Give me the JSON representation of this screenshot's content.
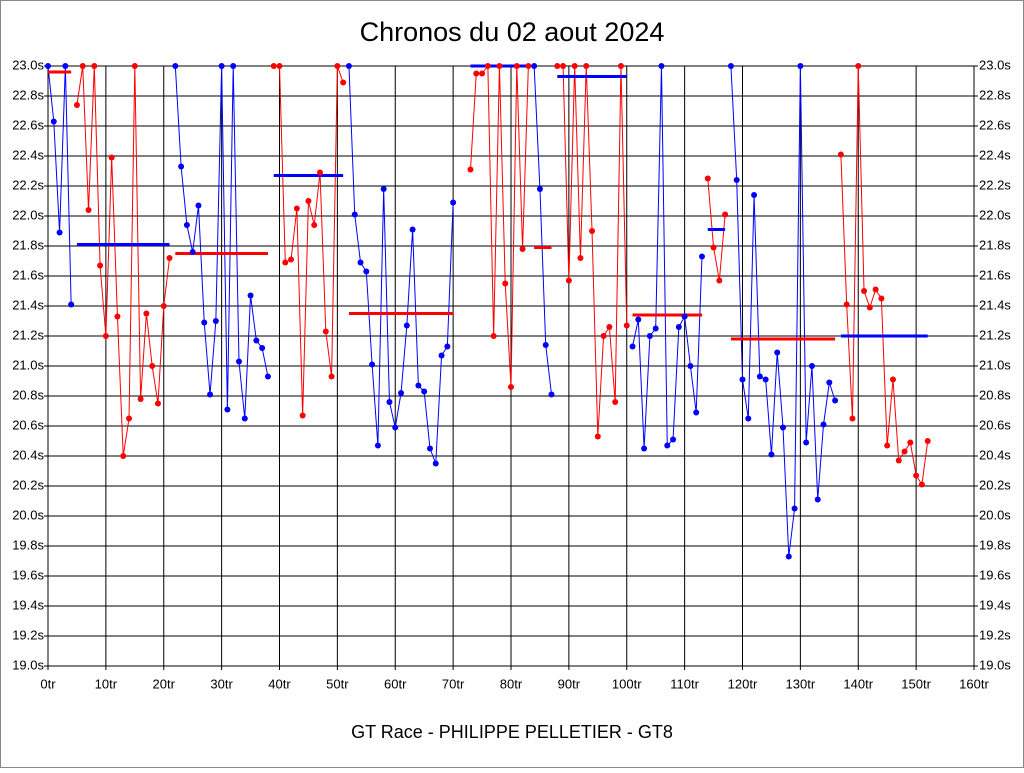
{
  "chart_data": {
    "type": "line",
    "title": "Chronos du 02 aout 2024",
    "x_label": "GT Race - PHILIPPE PELLETIER - GT8",
    "xlim": [
      0,
      160
    ],
    "ylim": [
      19.0,
      23.0
    ],
    "grid": true,
    "xticks": [
      {
        "value": 0,
        "label": "0tr"
      },
      {
        "value": 10,
        "label": "10tr"
      },
      {
        "value": 20,
        "label": "20tr"
      },
      {
        "value": 30,
        "label": "30tr"
      },
      {
        "value": 40,
        "label": "40tr"
      },
      {
        "value": 50,
        "label": "50tr"
      },
      {
        "value": 60,
        "label": "60tr"
      },
      {
        "value": 70,
        "label": "70tr"
      },
      {
        "value": 80,
        "label": "80tr"
      },
      {
        "value": 90,
        "label": "90tr"
      },
      {
        "value": 100,
        "label": "100tr"
      },
      {
        "value": 110,
        "label": "110tr"
      },
      {
        "value": 120,
        "label": "120tr"
      },
      {
        "value": 130,
        "label": "130tr"
      },
      {
        "value": 140,
        "label": "140tr"
      },
      {
        "value": 150,
        "label": "150tr"
      },
      {
        "value": 160,
        "label": "160tr"
      }
    ],
    "yticks": [
      {
        "value": 19.0,
        "label": "19.0s"
      },
      {
        "value": 19.2,
        "label": "19.2s"
      },
      {
        "value": 19.4,
        "label": "19.4s"
      },
      {
        "value": 19.6,
        "label": "19.6s"
      },
      {
        "value": 19.8,
        "label": "19.8s"
      },
      {
        "value": 20.0,
        "label": "20.0s"
      },
      {
        "value": 20.2,
        "label": "20.2s"
      },
      {
        "value": 20.4,
        "label": "20.4s"
      },
      {
        "value": 20.6,
        "label": "20.6s"
      },
      {
        "value": 20.8,
        "label": "20.8s"
      },
      {
        "value": 21.0,
        "label": "21.0s"
      },
      {
        "value": 21.2,
        "label": "21.2s"
      },
      {
        "value": 21.4,
        "label": "21.4s"
      },
      {
        "value": 21.6,
        "label": "21.6s"
      },
      {
        "value": 21.8,
        "label": "21.8s"
      },
      {
        "value": 22.0,
        "label": "22.0s"
      },
      {
        "value": 22.2,
        "label": "22.2s"
      },
      {
        "value": 22.4,
        "label": "22.4s"
      },
      {
        "value": 22.6,
        "label": "22.6s"
      },
      {
        "value": 22.8,
        "label": "22.8s"
      },
      {
        "value": 23.0,
        "label": "23.0s"
      }
    ],
    "series": [
      {
        "color": "#0000ff",
        "average_color": "#ff0000",
        "average": 22.96,
        "x": [
          0,
          1,
          2,
          3,
          4
        ],
        "values": [
          23.0,
          22.63,
          21.89,
          23.0,
          21.41
        ]
      },
      {
        "color": "#ff0000",
        "average_color": "#0000ff",
        "average": 21.81,
        "x": [
          5,
          6,
          7,
          8,
          9,
          10,
          11,
          12,
          13,
          14,
          15,
          16,
          17,
          18,
          19,
          20,
          21
        ],
        "values": [
          22.74,
          23.0,
          22.04,
          23.0,
          21.67,
          21.2,
          22.39,
          21.33,
          20.4,
          20.65,
          23.0,
          20.78,
          21.35,
          21.0,
          20.75,
          21.4,
          21.72
        ]
      },
      {
        "color": "#0000ff",
        "average_color": "#ff0000",
        "average": 21.75,
        "x": [
          22,
          23,
          24,
          25,
          26,
          27,
          28,
          29,
          30,
          31,
          32,
          33,
          34,
          35,
          36,
          37,
          38
        ],
        "values": [
          23.0,
          22.33,
          21.94,
          21.76,
          22.07,
          21.29,
          20.81,
          21.3,
          23.0,
          20.71,
          23.0,
          21.03,
          20.65,
          21.47,
          21.17,
          21.12,
          20.93
        ]
      },
      {
        "color": "#ff0000",
        "average_color": "#0000ff",
        "average": 22.27,
        "x": [
          39,
          40,
          41,
          42,
          43,
          44,
          45,
          46,
          47,
          48,
          49,
          50,
          51
        ],
        "values": [
          23.0,
          23.0,
          21.69,
          21.71,
          22.05,
          20.67,
          22.1,
          21.94,
          22.29,
          21.23,
          20.93,
          23.0,
          22.89
        ]
      },
      {
        "color": "#0000ff",
        "average_color": "#ff0000",
        "average": 21.35,
        "x": [
          52,
          53,
          54,
          55,
          56,
          57,
          58,
          59,
          60,
          61,
          62,
          63,
          64,
          65,
          66,
          67,
          68,
          69,
          70
        ],
        "values": [
          23.0,
          22.01,
          21.69,
          21.63,
          21.01,
          20.47,
          22.18,
          20.76,
          20.59,
          20.82,
          21.27,
          21.91,
          20.87,
          20.83,
          20.45,
          20.35,
          21.07,
          21.13,
          22.09
        ]
      },
      {
        "color": "#ff0000",
        "average_color": "#0000ff",
        "average": 23.0,
        "x": [
          73,
          74,
          75,
          76,
          77,
          78,
          79,
          80,
          81,
          82,
          83
        ],
        "values": [
          22.31,
          22.95,
          22.95,
          23.0,
          21.2,
          23.0,
          21.55,
          20.86,
          23.0,
          21.78,
          23.0
        ]
      },
      {
        "color": "#0000ff",
        "average_color": "#ff0000",
        "average": 21.79,
        "x": [
          84,
          85,
          86,
          87
        ],
        "values": [
          23.0,
          22.18,
          21.14,
          20.81
        ]
      },
      {
        "color": "#ff0000",
        "average_color": "#0000ff",
        "average": 22.93,
        "x": [
          88,
          89,
          90,
          91,
          92,
          93,
          94,
          95,
          96,
          97,
          98,
          99,
          100
        ],
        "values": [
          23.0,
          23.0,
          21.57,
          23.0,
          21.72,
          23.0,
          21.9,
          20.53,
          21.2,
          21.26,
          20.76,
          23.0,
          21.27
        ]
      },
      {
        "color": "#0000ff",
        "average_color": "#ff0000",
        "average": 21.34,
        "x": [
          101,
          102,
          103,
          104,
          105,
          106,
          107,
          108,
          109,
          110,
          111,
          112,
          113
        ],
        "values": [
          21.13,
          21.31,
          20.45,
          21.2,
          21.25,
          23.0,
          20.47,
          20.51,
          21.26,
          21.33,
          21.0,
          20.69,
          21.73
        ]
      },
      {
        "color": "#ff0000",
        "average_color": "#0000ff",
        "average": 21.91,
        "x": [
          114,
          115,
          116,
          117
        ],
        "values": [
          22.25,
          21.79,
          21.57,
          22.01
        ]
      },
      {
        "color": "#0000ff",
        "average_color": "#ff0000",
        "average": 21.18,
        "x": [
          118,
          119,
          120,
          121,
          122,
          123,
          124,
          125,
          126,
          127,
          128,
          129,
          130,
          131,
          132,
          133,
          134,
          135,
          136
        ],
        "values": [
          23.0,
          22.24,
          20.91,
          20.65,
          22.14,
          20.93,
          20.91,
          20.41,
          21.09,
          20.59,
          19.73,
          20.05,
          23.0,
          20.49,
          21.0,
          20.11,
          20.61,
          20.89,
          20.77
        ]
      },
      {
        "color": "#ff0000",
        "average_color": "#0000ff",
        "average": 21.2,
        "x": [
          137,
          138,
          139,
          140,
          141,
          142,
          143,
          144,
          145,
          146,
          147,
          148,
          149,
          150,
          151,
          152
        ],
        "values": [
          22.41,
          21.41,
          20.65,
          23.0,
          21.5,
          21.39,
          21.51,
          21.45,
          20.47,
          20.91,
          20.37,
          20.43,
          20.49,
          20.27,
          20.21,
          20.5
        ]
      }
    ]
  }
}
